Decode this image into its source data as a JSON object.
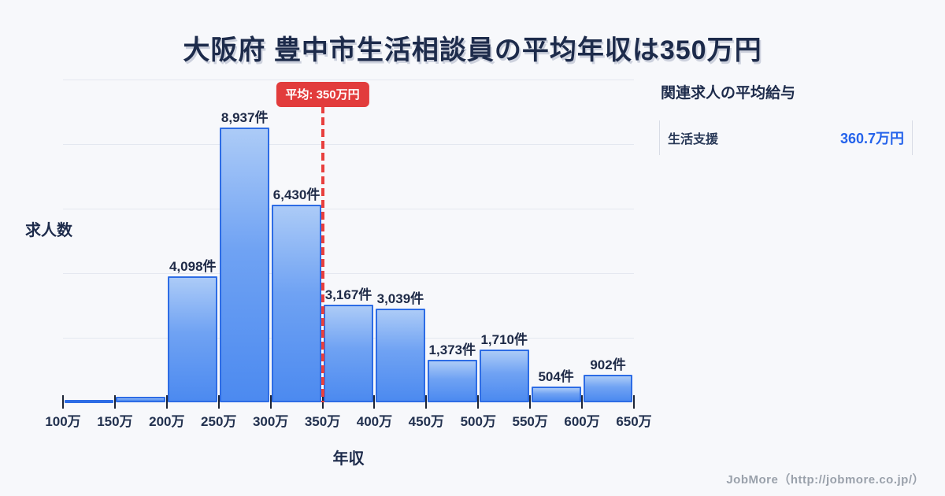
{
  "title": {
    "text": "大阪府 豊中市生活相談員の平均年収は350万円"
  },
  "chart_data": {
    "type": "bar",
    "title": "大阪府 豊中市生活相談員の平均年収は350万円",
    "xlabel": "年収",
    "ylabel": "求人数",
    "x_tick_labels": [
      "100万",
      "150万",
      "200万",
      "250万",
      "300万",
      "350万",
      "400万",
      "450万",
      "500万",
      "550万",
      "600万",
      "650万"
    ],
    "bins": [
      {
        "range": "100万-150万",
        "value": 80,
        "label": ""
      },
      {
        "range": "150万-200万",
        "value": 180,
        "label": ""
      },
      {
        "range": "200万-250万",
        "value": 4098,
        "label": "4,098件"
      },
      {
        "range": "250万-300万",
        "value": 8937,
        "label": "8,937件"
      },
      {
        "range": "300万-350万",
        "value": 6430,
        "label": "6,430件"
      },
      {
        "range": "350万-400万",
        "value": 3167,
        "label": "3,167件"
      },
      {
        "range": "400万-450万",
        "value": 3039,
        "label": "3,039件"
      },
      {
        "range": "450万-500万",
        "value": 1373,
        "label": "1,373件"
      },
      {
        "range": "500万-550万",
        "value": 1710,
        "label": "1,710件"
      },
      {
        "range": "550万-600万",
        "value": 504,
        "label": "504件"
      },
      {
        "range": "600万-650万",
        "value": 902,
        "label": "902件"
      }
    ],
    "average_line": {
      "x_value": "350万",
      "label": "平均: 350万円",
      "color": "#e23c3c"
    },
    "grid": true,
    "legend": false,
    "colors": {
      "bar_fill_top": "#accbf7",
      "bar_fill_bottom": "#4c8af0",
      "bar_border": "#2d6ce5",
      "gridline": "#e4e8f0",
      "accent_red": "#e23c3c",
      "accent_blue": "#2563eb",
      "text_dark": "#1d2b4b"
    }
  },
  "side_panel": {
    "title": "関連求人の平均給与",
    "rows": [
      {
        "label": "生活支援",
        "value": "360.7万円"
      }
    ]
  },
  "footer": {
    "credit": "JobMore（http://jobmore.co.jp/）"
  }
}
